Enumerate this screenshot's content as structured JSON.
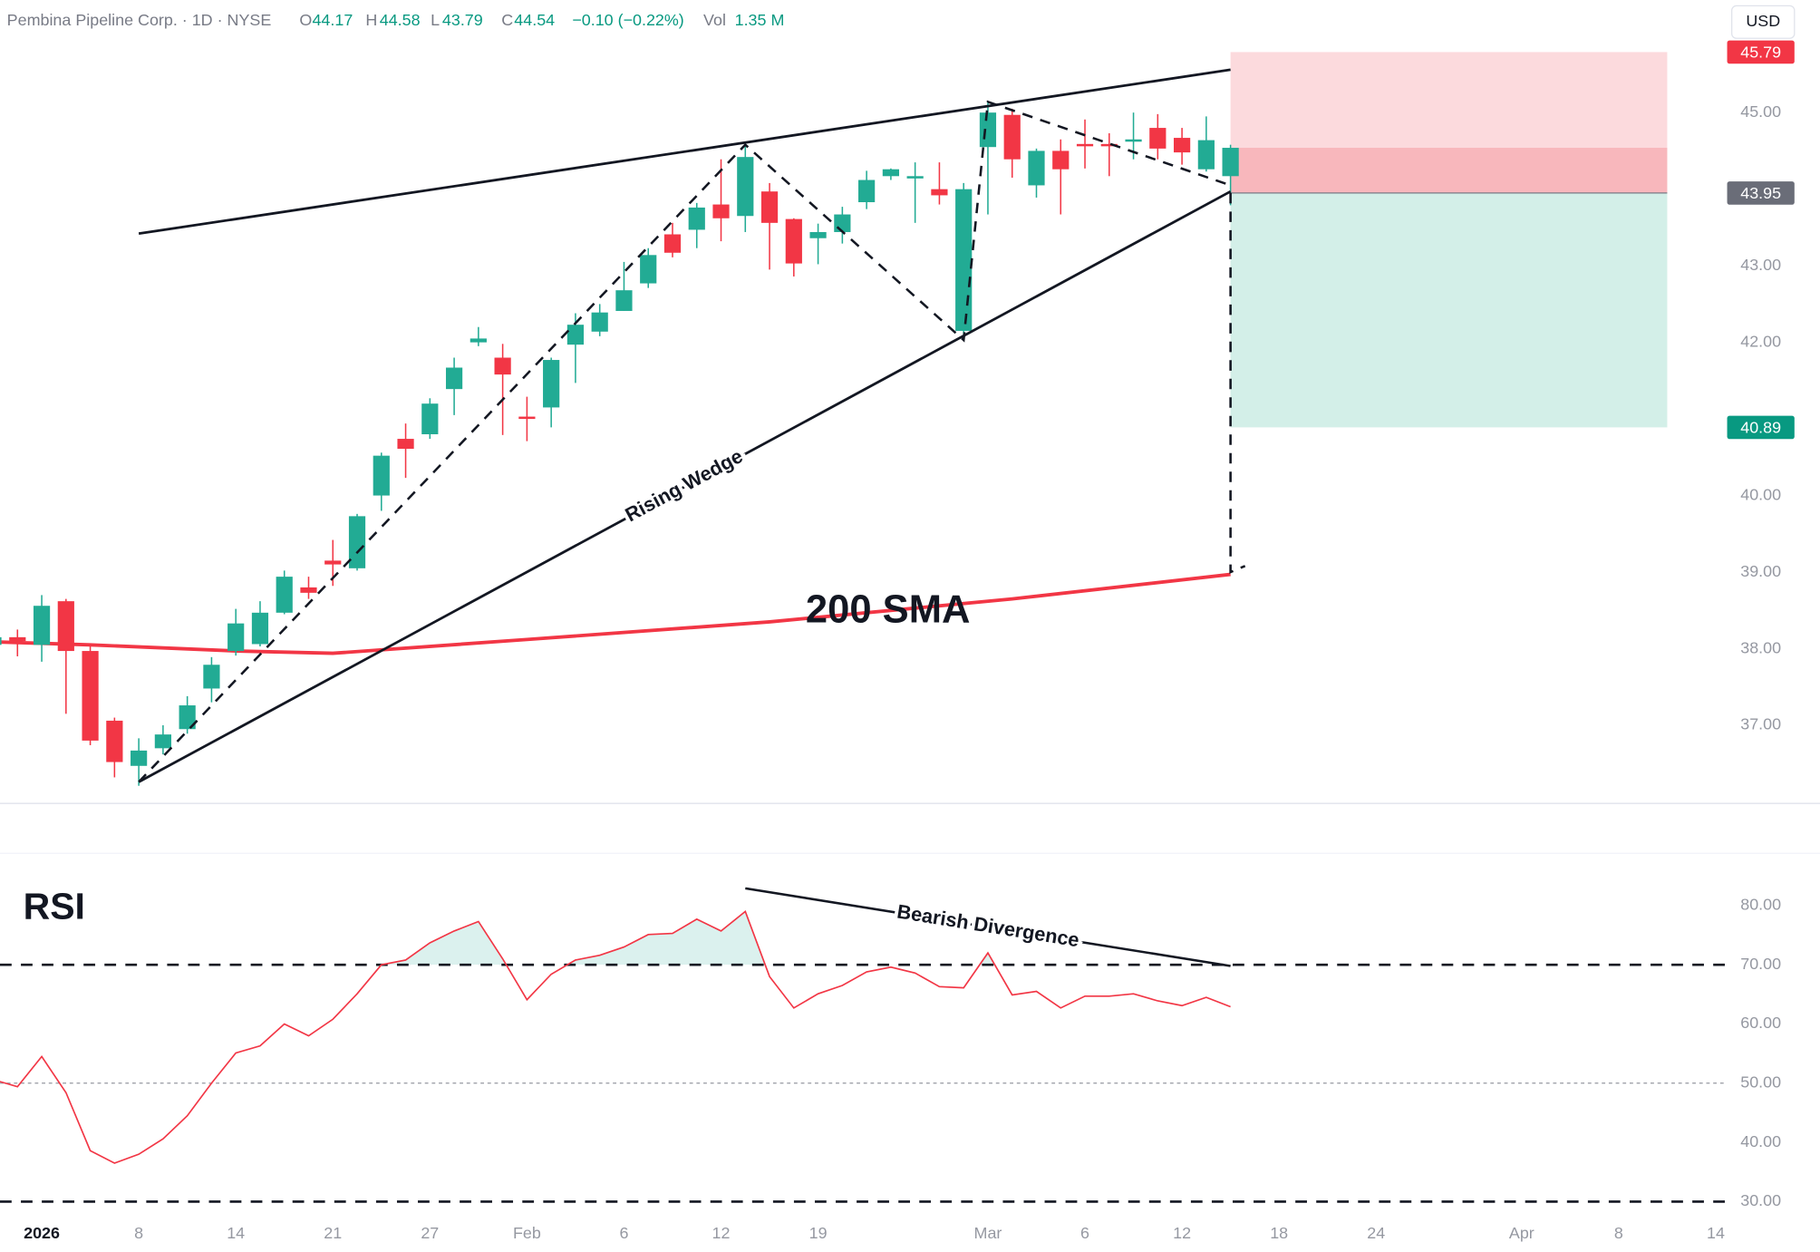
{
  "header": {
    "title": "Pembina Pipeline Corp. · 1D · NYSE",
    "o_label": "O",
    "h_label": "H",
    "l_label": "L",
    "c_label": "C",
    "change": "−0.10 (−0.22%)",
    "vol_label": "Vol",
    "volume": "1.35 M",
    "currency": "USD"
  },
  "chart_data": [
    {
      "type": "candlestick",
      "x": [
        -2,
        -1,
        0,
        1,
        2,
        3,
        4,
        5,
        6,
        7,
        8,
        9,
        10,
        11,
        12,
        13,
        14,
        15,
        16,
        17,
        18,
        19,
        20,
        21,
        22,
        23,
        24,
        25,
        26,
        27,
        28,
        29,
        30,
        31,
        32,
        33,
        34,
        35,
        36,
        37,
        38,
        39,
        40,
        41,
        42,
        43,
        44,
        45,
        46,
        47,
        48,
        49
      ],
      "open": [
        38.05,
        38.15,
        38.05,
        38.62,
        37.97,
        37.06,
        36.47,
        36.7,
        36.95,
        37.48,
        37.97,
        38.06,
        38.47,
        38.8,
        39.15,
        39.05,
        40.0,
        40.74,
        40.8,
        41.39,
        42.0,
        41.8,
        41.03,
        41.15,
        41.97,
        42.14,
        42.41,
        42.77,
        43.41,
        43.47,
        43.8,
        43.65,
        43.97,
        43.61,
        43.36,
        43.44,
        43.83,
        44.17,
        44.14,
        44.0,
        42.15,
        44.55,
        44.97,
        44.05,
        44.5,
        44.59,
        44.59,
        44.62,
        44.8,
        44.67,
        44.26,
        44.17
      ],
      "high": [
        38.2,
        38.25,
        38.7,
        38.65,
        38.06,
        37.1,
        36.83,
        37.0,
        37.38,
        37.89,
        38.52,
        38.62,
        39.02,
        38.94,
        39.42,
        39.76,
        40.56,
        40.94,
        41.27,
        41.8,
        42.2,
        41.98,
        41.29,
        41.8,
        42.38,
        42.5,
        43.05,
        43.23,
        43.56,
        43.82,
        44.39,
        44.58,
        44.08,
        43.62,
        43.55,
        43.77,
        44.24,
        44.27,
        44.35,
        44.35,
        44.08,
        45.15,
        45.05,
        44.53,
        44.65,
        44.91,
        44.73,
        45.0,
        44.98,
        44.8,
        44.95,
        44.58
      ],
      "low": [
        38.0,
        37.9,
        37.83,
        37.15,
        36.74,
        36.32,
        36.21,
        36.62,
        36.89,
        37.3,
        37.91,
        38.03,
        38.45,
        38.65,
        38.82,
        39.02,
        39.8,
        40.23,
        40.74,
        41.05,
        41.95,
        40.79,
        40.71,
        40.89,
        41.47,
        42.08,
        42.41,
        42.71,
        43.11,
        43.23,
        43.32,
        43.44,
        42.95,
        42.86,
        43.02,
        43.29,
        43.74,
        44.12,
        43.56,
        43.8,
        42.03,
        43.67,
        44.15,
        43.89,
        43.67,
        44.27,
        44.17,
        44.39,
        44.39,
        44.32,
        44.23,
        43.79
      ],
      "close": [
        38.15,
        38.1,
        38.56,
        37.97,
        36.8,
        36.52,
        36.67,
        36.88,
        37.26,
        37.79,
        38.33,
        38.47,
        38.94,
        38.73,
        39.1,
        39.73,
        40.52,
        40.61,
        41.2,
        41.67,
        42.05,
        41.58,
        41.0,
        41.77,
        42.23,
        42.39,
        42.68,
        43.14,
        43.17,
        43.76,
        43.62,
        44.42,
        43.56,
        43.03,
        43.44,
        43.67,
        44.12,
        44.26,
        44.17,
        43.92,
        44.0,
        45.0,
        44.39,
        44.5,
        44.26,
        44.56,
        44.56,
        44.65,
        44.53,
        44.48,
        44.64,
        44.54
      ],
      "up_color": "#22ab94",
      "down_color": "#f23645",
      "xlim": [
        -1.72,
        69.47
      ],
      "xticks": [
        {
          "value": 0,
          "label": "2026"
        },
        {
          "value": 4,
          "label": "8"
        },
        {
          "value": 8,
          "label": "14"
        },
        {
          "value": 12,
          "label": "21"
        },
        {
          "value": 16,
          "label": "27"
        },
        {
          "value": 20,
          "label": "Feb"
        },
        {
          "value": 24,
          "label": "6"
        },
        {
          "value": 28,
          "label": "12"
        },
        {
          "value": 32,
          "label": "19"
        },
        {
          "value": 39,
          "label": "Mar"
        },
        {
          "value": 43,
          "label": "6"
        },
        {
          "value": 47,
          "label": "12"
        },
        {
          "value": 51,
          "label": "18"
        },
        {
          "value": 55,
          "label": "24"
        },
        {
          "value": 61,
          "label": "Apr"
        },
        {
          "value": 65,
          "label": "8"
        },
        {
          "value": 69,
          "label": "14"
        }
      ],
      "ylim": [
        35.98,
        46.47
      ],
      "yticks": [
        {
          "value": 45,
          "label": "45.00"
        },
        {
          "value": 43,
          "label": "43.00"
        },
        {
          "value": 42,
          "label": "42.00"
        },
        {
          "value": 40,
          "label": "40.00"
        },
        {
          "value": 39,
          "label": "39.00"
        },
        {
          "value": 38,
          "label": "38.00"
        },
        {
          "value": 37,
          "label": "37.00"
        }
      ],
      "sma": {
        "name": "200 SMA",
        "color": "#f23645",
        "x": [
          -2,
          2,
          8,
          12,
          20,
          30,
          40,
          49
        ],
        "values": [
          38.09,
          38.05,
          37.97,
          37.94,
          38.12,
          38.35,
          38.65,
          38.97
        ]
      },
      "position": {
        "x": [
          49,
          67
        ],
        "stop": 45.79,
        "entry": 43.95,
        "target": 40.89
      },
      "drawings": [
        {
          "style": "solid",
          "points": [
            [
              4,
              43.42
            ],
            [
              49,
              45.56
            ]
          ]
        },
        {
          "style": "solid",
          "label": "Rising Wedge",
          "points": [
            [
              4,
              36.26
            ],
            [
              49,
              43.97
            ]
          ]
        },
        {
          "style": "dashed",
          "points": [
            [
              4,
              36.26
            ],
            [
              29,
              44.58
            ],
            [
              38,
              42.03
            ],
            [
              39,
              45.14
            ],
            [
              49,
              44.05
            ]
          ]
        },
        {
          "style": "dashed",
          "points": [
            [
              49,
              43.95
            ],
            [
              49,
              39.0
            ],
            [
              49.6,
              39.08
            ]
          ]
        }
      ]
    },
    {
      "type": "line",
      "title": "RSI",
      "color": "#f23645",
      "x": [
        -2,
        -1,
        0,
        1,
        2,
        3,
        4,
        5,
        6,
        7,
        8,
        9,
        10,
        11,
        12,
        13,
        14,
        15,
        16,
        17,
        18,
        19,
        20,
        21,
        22,
        23,
        24,
        25,
        26,
        27,
        28,
        29,
        30,
        31,
        32,
        33,
        34,
        35,
        36,
        37,
        38,
        39,
        40,
        41,
        42,
        43,
        44,
        45,
        46,
        47,
        48,
        49
      ],
      "values": [
        50.6,
        49.4,
        54.5,
        48.4,
        38.6,
        36.5,
        38,
        40.6,
        44.5,
        50,
        55.1,
        56.3,
        60,
        58,
        60.8,
        65.1,
        70,
        70.8,
        73.7,
        75.7,
        77.3,
        71,
        64.1,
        68.4,
        70.8,
        71.6,
        73,
        75.1,
        75.3,
        77.7,
        75.7,
        79,
        68,
        62.7,
        65.1,
        66.5,
        68.8,
        69.6,
        68.6,
        66.3,
        66.1,
        72,
        64.9,
        65.5,
        62.7,
        64.7,
        64.7,
        65.1,
        63.9,
        63.1,
        64.5,
        62.9
      ],
      "xlim": [
        -1.72,
        69.47
      ],
      "ylim": [
        27.45,
        88.82
      ],
      "yticks": [
        {
          "value": 80,
          "label": "80.00"
        },
        {
          "value": 70,
          "label": "70.00"
        },
        {
          "value": 60,
          "label": "60.00"
        },
        {
          "value": 50,
          "label": "50.00"
        },
        {
          "value": 40,
          "label": "40.00"
        },
        {
          "value": 30,
          "label": "30.00"
        }
      ],
      "bands": [
        70,
        30
      ],
      "midline": 50,
      "divergence": {
        "label": "Bearish Divergence",
        "points": [
          [
            29,
            82.9
          ],
          [
            49,
            69.8
          ]
        ]
      }
    }
  ]
}
